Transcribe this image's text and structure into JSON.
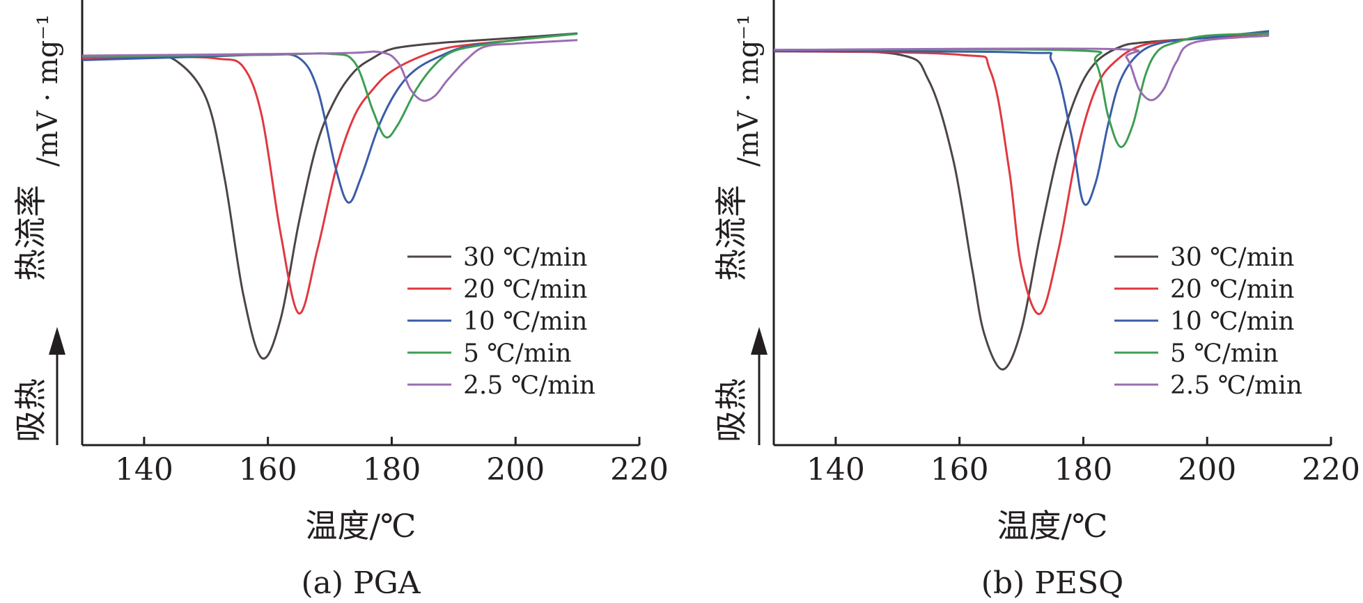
{
  "chart_data": [
    {
      "type": "line",
      "caption": "(a) PGA",
      "xlabel": "温度/℃",
      "ylabel_main": "热流率",
      "ylabel_unit": "/mV · mg⁻¹",
      "endo_label": "吸热",
      "xlim": [
        130,
        220
      ],
      "xticks": [
        140,
        160,
        180,
        200,
        220
      ],
      "ylim": [
        0,
        1
      ],
      "legend_position": "lower-right",
      "series": [
        {
          "name": "30 ℃/min",
          "color": "#4d4545",
          "x": [
            130,
            140,
            145,
            150,
            153,
            156,
            159,
            162,
            165,
            168,
            171,
            174,
            177,
            180,
            185,
            190,
            200,
            210
          ],
          "y": [
            0.87,
            0.872,
            0.865,
            0.78,
            0.6,
            0.34,
            0.196,
            0.28,
            0.5,
            0.68,
            0.78,
            0.84,
            0.87,
            0.89,
            0.9,
            0.906,
            0.915,
            0.925
          ]
        },
        {
          "name": "20 ℃/min",
          "color": "#e0383e",
          "x": [
            130,
            145,
            152,
            156,
            159,
            162,
            165,
            168,
            171,
            174,
            177,
            180,
            185,
            190,
            200,
            210
          ],
          "y": [
            0.87,
            0.872,
            0.868,
            0.85,
            0.74,
            0.48,
            0.296,
            0.44,
            0.62,
            0.74,
            0.8,
            0.84,
            0.875,
            0.895,
            0.91,
            0.925
          ]
        },
        {
          "name": "10 ℃/min",
          "color": "#3a5ca8",
          "x": [
            130,
            150,
            160,
            165,
            168,
            171,
            173,
            175,
            178,
            181,
            184,
            188,
            192,
            200,
            210
          ],
          "y": [
            0.865,
            0.873,
            0.877,
            0.87,
            0.8,
            0.62,
            0.545,
            0.6,
            0.72,
            0.8,
            0.845,
            0.875,
            0.895,
            0.91,
            0.925
          ]
        },
        {
          "name": "5 ℃/min",
          "color": "#3c9e52",
          "x": [
            130,
            160,
            170,
            174,
            177,
            179,
            181,
            184,
            187,
            190,
            195,
            200,
            210
          ],
          "y": [
            0.873,
            0.877,
            0.879,
            0.86,
            0.75,
            0.692,
            0.72,
            0.8,
            0.855,
            0.885,
            0.9,
            0.91,
            0.924
          ]
        },
        {
          "name": "2.5 ℃/min",
          "color": "#9b6db1",
          "x": [
            130,
            170,
            178,
            181,
            183,
            185,
            187,
            189,
            192,
            195,
            200,
            210
          ],
          "y": [
            0.875,
            0.88,
            0.883,
            0.86,
            0.8,
            0.774,
            0.785,
            0.82,
            0.865,
            0.895,
            0.902,
            0.91
          ]
        }
      ]
    },
    {
      "type": "line",
      "caption": "(b) PESQ",
      "xlabel": "温度/℃",
      "ylabel_main": "热流率",
      "ylabel_unit": "/mV · mg⁻¹",
      "endo_label": "吸热",
      "xlim": [
        130,
        220
      ],
      "xticks": [
        140,
        160,
        180,
        200,
        220
      ],
      "ylim": [
        0,
        1
      ],
      "legend_position": "lower-right",
      "series": [
        {
          "name": "30 ℃/min",
          "color": "#4d4545",
          "x": [
            130,
            150,
            155,
            159,
            162,
            164,
            167,
            170,
            173,
            176,
            179,
            182,
            186,
            190,
            200,
            210
          ],
          "y": [
            0.885,
            0.878,
            0.82,
            0.64,
            0.4,
            0.25,
            0.17,
            0.26,
            0.47,
            0.66,
            0.79,
            0.86,
            0.895,
            0.905,
            0.915,
            0.925
          ]
        },
        {
          "name": "20 ℃/min",
          "color": "#e0383e",
          "x": [
            130,
            160,
            165,
            168,
            170,
            173,
            176,
            179,
            182,
            185,
            190,
            200,
            210
          ],
          "y": [
            0.885,
            0.877,
            0.84,
            0.62,
            0.4,
            0.295,
            0.44,
            0.66,
            0.8,
            0.86,
            0.9,
            0.915,
            0.925
          ]
        },
        {
          "name": "10 ℃/min",
          "color": "#3a5ca8",
          "x": [
            130,
            170,
            175,
            178,
            180,
            182,
            184,
            186,
            189,
            193,
            200,
            210
          ],
          "y": [
            0.885,
            0.882,
            0.86,
            0.7,
            0.545,
            0.59,
            0.72,
            0.82,
            0.88,
            0.905,
            0.915,
            0.93
          ]
        },
        {
          "name": "5 ℃/min",
          "color": "#3c9e52",
          "x": [
            130,
            178,
            182,
            184,
            186,
            188,
            190,
            192,
            195,
            200,
            210
          ],
          "y": [
            0.888,
            0.887,
            0.86,
            0.74,
            0.67,
            0.72,
            0.83,
            0.885,
            0.905,
            0.92,
            0.925
          ]
        },
        {
          "name": "2.5 ℃/min",
          "color": "#9b6db1",
          "x": [
            130,
            184,
            187,
            189,
            191,
            193,
            195,
            198,
            210
          ],
          "y": [
            0.888,
            0.89,
            0.87,
            0.8,
            0.775,
            0.8,
            0.86,
            0.905,
            0.92
          ]
        }
      ]
    }
  ]
}
